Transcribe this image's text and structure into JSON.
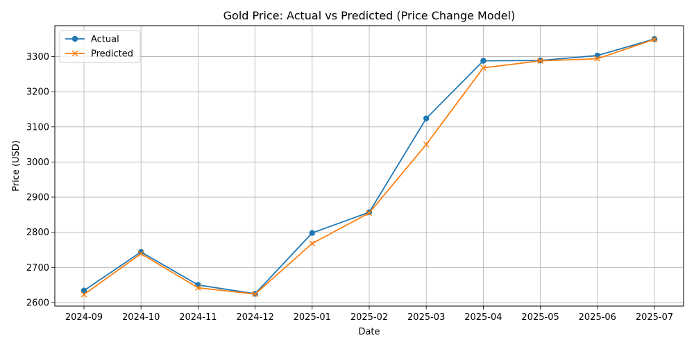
{
  "chart_data": {
    "type": "line",
    "title": "Gold Price: Actual vs Predicted (Price Change Model)",
    "xlabel": "Date",
    "ylabel": "Price (USD)",
    "categories": [
      "2024-09",
      "2024-10",
      "2024-11",
      "2024-12",
      "2025-01",
      "2025-02",
      "2025-03",
      "2025-04",
      "2025-05",
      "2025-06",
      "2025-07"
    ],
    "series": [
      {
        "name": "Actual",
        "color": "#1f77b4",
        "marker": "circle",
        "values": [
          2634,
          2744,
          2650,
          2625,
          2798,
          2857,
          3124,
          3288,
          3289,
          3303,
          3350
        ]
      },
      {
        "name": "Predicted",
        "color": "#ff7f0e",
        "marker": "x",
        "values": [
          2623,
          2739,
          2642,
          2624,
          2768,
          2855,
          3050,
          3268,
          3288,
          3294,
          3349
        ]
      }
    ],
    "ylim": [
      2590,
      3388
    ],
    "yticks": [
      2600,
      2700,
      2800,
      2900,
      3000,
      3100,
      3200,
      3300
    ],
    "grid": true,
    "legend": "upper-left"
  }
}
